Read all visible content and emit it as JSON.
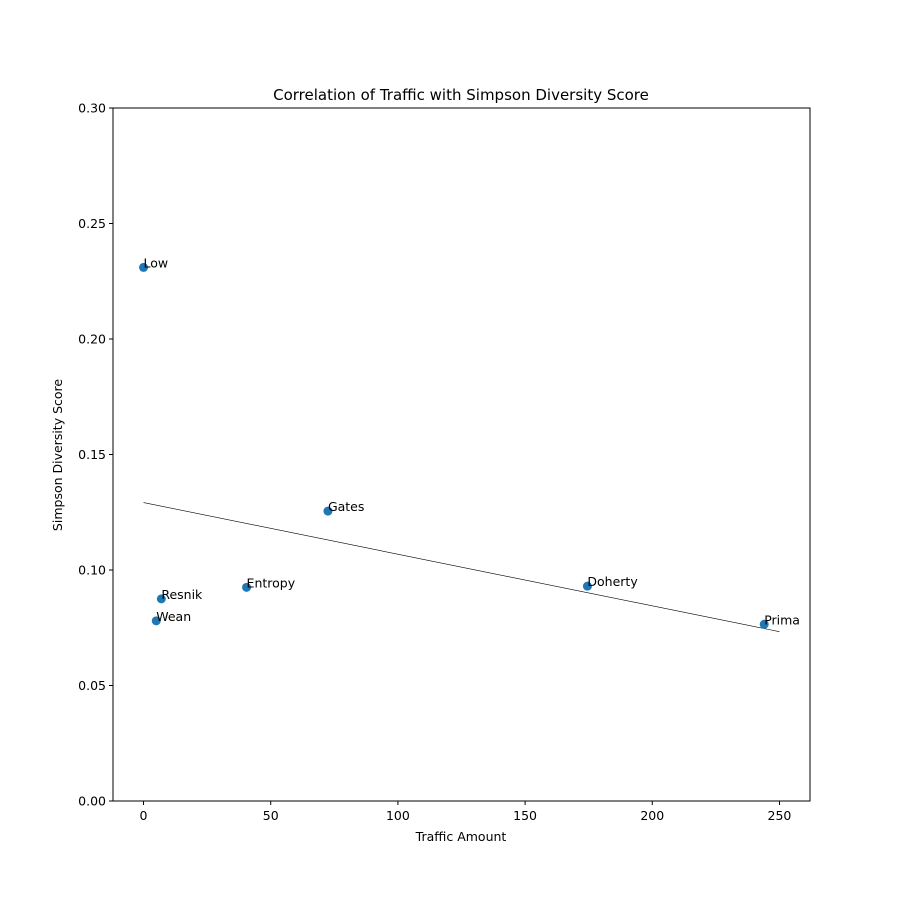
{
  "chart_data": {
    "type": "scatter",
    "title": "Correlation of Traffic with Simpson Diversity Score",
    "xlabel": "Traffic Amount",
    "ylabel": "Simpson Diversity Score",
    "xlim": [
      -12,
      262
    ],
    "ylim": [
      0,
      0.3
    ],
    "xticks": [
      0,
      50,
      100,
      150,
      200,
      250
    ],
    "xtick_labels": [
      "0",
      "50",
      "100",
      "150",
      "200",
      "250"
    ],
    "yticks": [
      0,
      0.05,
      0.1,
      0.15,
      0.2,
      0.25,
      0.3
    ],
    "ytick_labels": [
      "0.00",
      "0.05",
      "0.10",
      "0.15",
      "0.20",
      "0.25",
      "0.30"
    ],
    "grid": false,
    "point_color": "#1f77b4",
    "points": [
      {
        "label": "Low",
        "x": 0,
        "y": 0.231
      },
      {
        "label": "Resnik",
        "x": 7,
        "y": 0.0875
      },
      {
        "label": "Wean",
        "x": 5,
        "y": 0.078
      },
      {
        "label": "Entropy",
        "x": 40.5,
        "y": 0.0925
      },
      {
        "label": "Gates",
        "x": 72.5,
        "y": 0.1255
      },
      {
        "label": "Doherty",
        "x": 174.5,
        "y": 0.093
      },
      {
        "label": "Prima",
        "x": 244,
        "y": 0.0765
      }
    ],
    "trendline": {
      "x": [
        0,
        250
      ],
      "y": [
        0.1292,
        0.0733
      ],
      "color": "#000000"
    }
  }
}
